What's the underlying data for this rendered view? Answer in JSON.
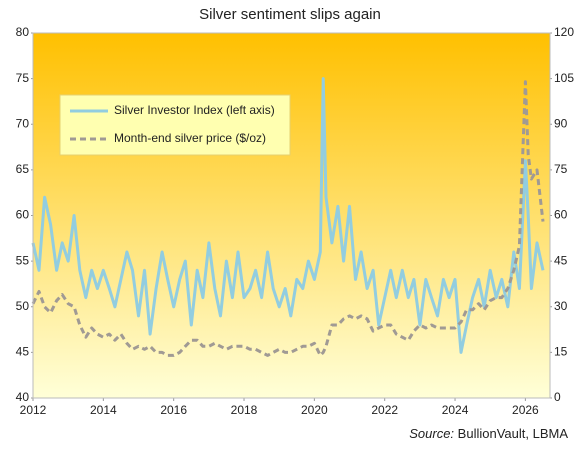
{
  "chart_data": {
    "type": "line",
    "title": "Silver sentiment slips again",
    "source_label": "Source:",
    "source": "BullionVault, LBMA",
    "x": [
      2012.0,
      2012.17,
      2012.33,
      2012.5,
      2012.67,
      2012.83,
      2013.0,
      2013.17,
      2013.33,
      2013.5,
      2013.67,
      2013.83,
      2014.0,
      2014.17,
      2014.33,
      2014.5,
      2014.67,
      2014.83,
      2015.0,
      2015.17,
      2015.33,
      2015.5,
      2015.67,
      2015.83,
      2016.0,
      2016.17,
      2016.33,
      2016.5,
      2016.67,
      2016.83,
      2017.0,
      2017.17,
      2017.33,
      2017.5,
      2017.67,
      2017.83,
      2018.0,
      2018.17,
      2018.33,
      2018.5,
      2018.67,
      2018.83,
      2019.0,
      2019.17,
      2019.33,
      2019.5,
      2019.67,
      2019.83,
      2020.0,
      2020.17,
      2020.25,
      2020.33,
      2020.5,
      2020.67,
      2020.83,
      2021.0,
      2021.17,
      2021.33,
      2021.5,
      2021.67,
      2021.83,
      2022.0,
      2022.17,
      2022.33,
      2022.5,
      2022.67,
      2022.83,
      2023.0,
      2023.17,
      2023.33,
      2023.5,
      2023.67,
      2023.83,
      2024.0,
      2024.17,
      2024.33,
      2024.5,
      2024.67,
      2024.83,
      2025.0,
      2025.17,
      2025.33,
      2025.5,
      2025.67,
      2025.83,
      2026.0,
      2026.08,
      2026.17,
      2026.33,
      2026.5
    ],
    "series": [
      {
        "name": "Silver Investor Index (left axis)",
        "color": "#92cde0",
        "axis": "y",
        "dash": false,
        "values": [
          57,
          54,
          62,
          59,
          54,
          57,
          55,
          60,
          54,
          51,
          54,
          52,
          54,
          52,
          50,
          53,
          56,
          54,
          49,
          54,
          47,
          52,
          56,
          53,
          50,
          53,
          55,
          48,
          54,
          51,
          57,
          52,
          49,
          55,
          51,
          56,
          51,
          52,
          54,
          51,
          56,
          52,
          50,
          52,
          49,
          53,
          52,
          55,
          53,
          56,
          75,
          62,
          57,
          61,
          55,
          61,
          53,
          56,
          52,
          54,
          48,
          51,
          54,
          51,
          54,
          51,
          53,
          48,
          53,
          51,
          49,
          53,
          51,
          53,
          45,
          48,
          51,
          53,
          50,
          54,
          51,
          53,
          50,
          56,
          52,
          66,
          60,
          52,
          57,
          54
        ]
      },
      {
        "name": "Month-end silver price ($/oz)",
        "color": "#a09a94",
        "axis": "y2",
        "dash": true,
        "values": [
          31,
          35,
          30,
          28,
          32,
          34,
          31,
          30,
          24,
          20,
          23,
          21,
          20,
          21,
          19,
          21,
          18,
          16,
          17,
          16,
          17,
          15,
          15,
          14,
          14,
          15,
          17,
          19,
          19,
          17,
          17,
          18,
          17,
          16,
          17,
          17,
          17,
          16,
          16,
          15,
          14,
          15,
          16,
          15,
          15,
          16,
          17,
          17,
          18,
          14,
          15,
          17,
          24,
          24,
          26,
          27,
          26,
          27,
          26,
          22,
          23,
          24,
          24,
          21,
          20,
          19,
          22,
          24,
          23,
          24,
          23,
          23,
          23,
          23,
          25,
          29,
          29,
          31,
          29,
          32,
          33,
          33,
          36,
          42,
          50,
          104,
          80,
          72,
          75,
          58
        ]
      }
    ],
    "xlim": [
      2012,
      2026.7
    ],
    "xticks": [
      2012,
      2014,
      2016,
      2018,
      2020,
      2022,
      2024,
      2026
    ],
    "ylim": [
      40,
      80
    ],
    "yticks": [
      40,
      45,
      50,
      55,
      60,
      65,
      70,
      75,
      80
    ],
    "y2lim": [
      0,
      120
    ],
    "y2ticks": [
      0,
      15,
      30,
      45,
      60,
      75,
      90,
      105,
      120
    ]
  }
}
